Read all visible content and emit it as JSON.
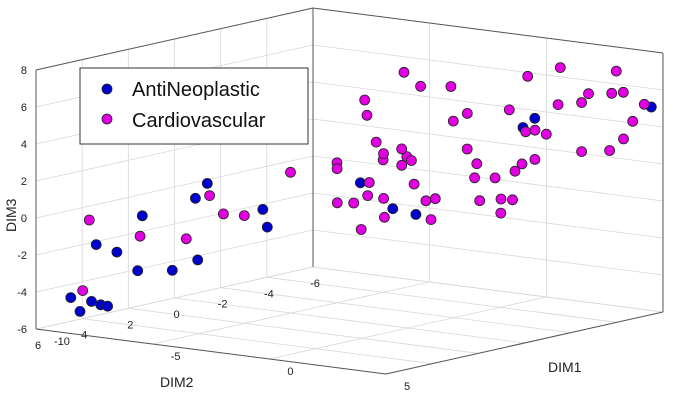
{
  "chart_data": {
    "type": "scatter3d",
    "title": "",
    "xlabel": "DIM1",
    "ylabel": "DIM2",
    "zlabel": "DIM3",
    "xlim": [
      -10,
      5
    ],
    "ylim": [
      -6,
      6
    ],
    "zlim": [
      -6,
      8
    ],
    "x_ticks": [
      "-10",
      "-5",
      "0",
      "5"
    ],
    "y_ticks": [
      "-6",
      "-4",
      "-2",
      "0",
      "2",
      "4",
      "6"
    ],
    "z_ticks": [
      "-6",
      "-4",
      "-2",
      "0",
      "2",
      "4",
      "6",
      "8"
    ],
    "grid": true,
    "legend_position": "top-left",
    "series": [
      {
        "name": "AntiNeoplastic",
        "color": "#0000cc",
        "points": [
          [
            -9.5,
            5.0,
            -4.5
          ],
          [
            -9.6,
            4.5,
            -5.4
          ],
          [
            -9.6,
            4.0,
            -5.0
          ],
          [
            -9.6,
            3.6,
            -5.3
          ],
          [
            -9.7,
            3.2,
            -5.5
          ],
          [
            -9.4,
            4.0,
            -1.9
          ],
          [
            -9.5,
            3.0,
            -2.6
          ],
          [
            -9.6,
            2.0,
            -3.9
          ],
          [
            -9.4,
            2.0,
            -0.9
          ],
          [
            -9.6,
            0.5,
            -4.3
          ],
          [
            -9.5,
            -0.5,
            -4.0
          ],
          [
            -9.4,
            -0.3,
            -0.6
          ],
          [
            -8.0,
            -2.0,
            -2.4
          ],
          [
            -7.8,
            -1.6,
            -1.3
          ],
          [
            -5.0,
            -3.0,
            0.2
          ],
          [
            -4.8,
            -4.2,
            -1.5
          ],
          [
            -4.6,
            -5.0,
            -2.0
          ],
          [
            -8.2,
            0.4,
            0.6
          ],
          [
            -1.0,
            -6.0,
            3.0
          ],
          [
            0.0,
            -5.5,
            3.8
          ],
          [
            4.5,
            -6.0,
            5.0
          ]
        ]
      },
      {
        "name": "Cardiovascular",
        "color": "#e000e0",
        "points": [
          [
            -8.0,
            6.0,
            -3.6
          ],
          [
            -9.2,
            4.5,
            -0.4
          ],
          [
            -9.0,
            2.5,
            -1.8
          ],
          [
            -9.0,
            0.5,
            -2.5
          ],
          [
            -8.0,
            0.5,
            0.0
          ],
          [
            -8.1,
            -0.2,
            -1.2
          ],
          [
            -8.0,
            -1.0,
            -1.5
          ],
          [
            -7.5,
            -2.5,
            0.5
          ],
          [
            -6.5,
            -3.5,
            0.9
          ],
          [
            -6.0,
            -3.0,
            0.8
          ],
          [
            -4.0,
            -4.0,
            1.5
          ],
          [
            -5.0,
            -2.0,
            -0.6
          ],
          [
            -4.5,
            -3.5,
            -0.7
          ],
          [
            -6.6,
            -5.0,
            -0.6
          ],
          [
            -6.6,
            -5.3,
            1.5
          ],
          [
            -6.5,
            -5.5,
            0.5
          ],
          [
            -6.0,
            -5.8,
            0.2
          ],
          [
            -2.6,
            -5.2,
            1.8
          ],
          [
            -1.7,
            -5.5,
            0.3
          ],
          [
            -4.3,
            -4.5,
            1.1
          ],
          [
            -6.4,
            -4.6,
            4.0
          ],
          [
            -6.5,
            -4.8,
            3.1
          ],
          [
            -5.0,
            -4.0,
            1.5
          ],
          [
            -3.0,
            -5.0,
            3.3
          ],
          [
            -6.0,
            -5.9,
            5.2
          ],
          [
            -4.3,
            -4.9,
            5.0
          ],
          [
            -3.0,
            -4.9,
            5.2
          ],
          [
            -2.2,
            -4.8,
            3.9
          ],
          [
            -0.6,
            -5.0,
            4.3
          ],
          [
            -0.8,
            -6.0,
            5.8
          ],
          [
            1.0,
            -5.5,
            4.7
          ],
          [
            2.3,
            -5.5,
            5.5
          ],
          [
            3.3,
            -6.0,
            5.6
          ],
          [
            3.7,
            -6.0,
            4.1
          ],
          [
            0.6,
            -6.0,
            6.5
          ],
          [
            3.0,
            -6.0,
            6.7
          ],
          [
            3.1,
            -5.7,
            5.6
          ],
          [
            4.2,
            -6.0,
            5.1
          ],
          [
            2.5,
            -5.0,
            5.2
          ],
          [
            0.0,
            -6.0,
            2.8
          ],
          [
            0.5,
            -4.6,
            3.4
          ],
          [
            1.0,
            -4.5,
            3.6
          ],
          [
            2.4,
            -5.1,
            2.5
          ],
          [
            3.8,
            -5.5,
            3.3
          ],
          [
            3.7,
            -5.0,
            2.8
          ],
          [
            0.5,
            -5.0,
            1.8
          ],
          [
            -1.0,
            -4.0,
            1.6
          ],
          [
            -0.7,
            -3.6,
            1.0
          ],
          [
            -2.7,
            -3.0,
            0.5
          ],
          [
            -0.8,
            -2.0,
            0.3
          ],
          [
            1.1,
            -2.0,
            0.5
          ],
          [
            3.0,
            -1.5,
            1.0
          ],
          [
            -4.3,
            -2.0,
            -0.5
          ],
          [
            -3.7,
            -2.0,
            0.0
          ],
          [
            -1.7,
            -2.5,
            -0.1
          ],
          [
            -1.5,
            -0.5,
            -0.4
          ],
          [
            0.5,
            -0.5,
            -0.2
          ],
          [
            2.5,
            -1.5,
            0.2
          ],
          [
            3.5,
            -0.5,
            1.4
          ],
          [
            4.1,
            -0.5,
            3.0
          ],
          [
            4.3,
            -0.6,
            3.4
          ],
          [
            -2.0,
            0.0,
            -1.0
          ],
          [
            -6.2,
            -6.0,
            1.0
          ]
        ]
      }
    ]
  }
}
